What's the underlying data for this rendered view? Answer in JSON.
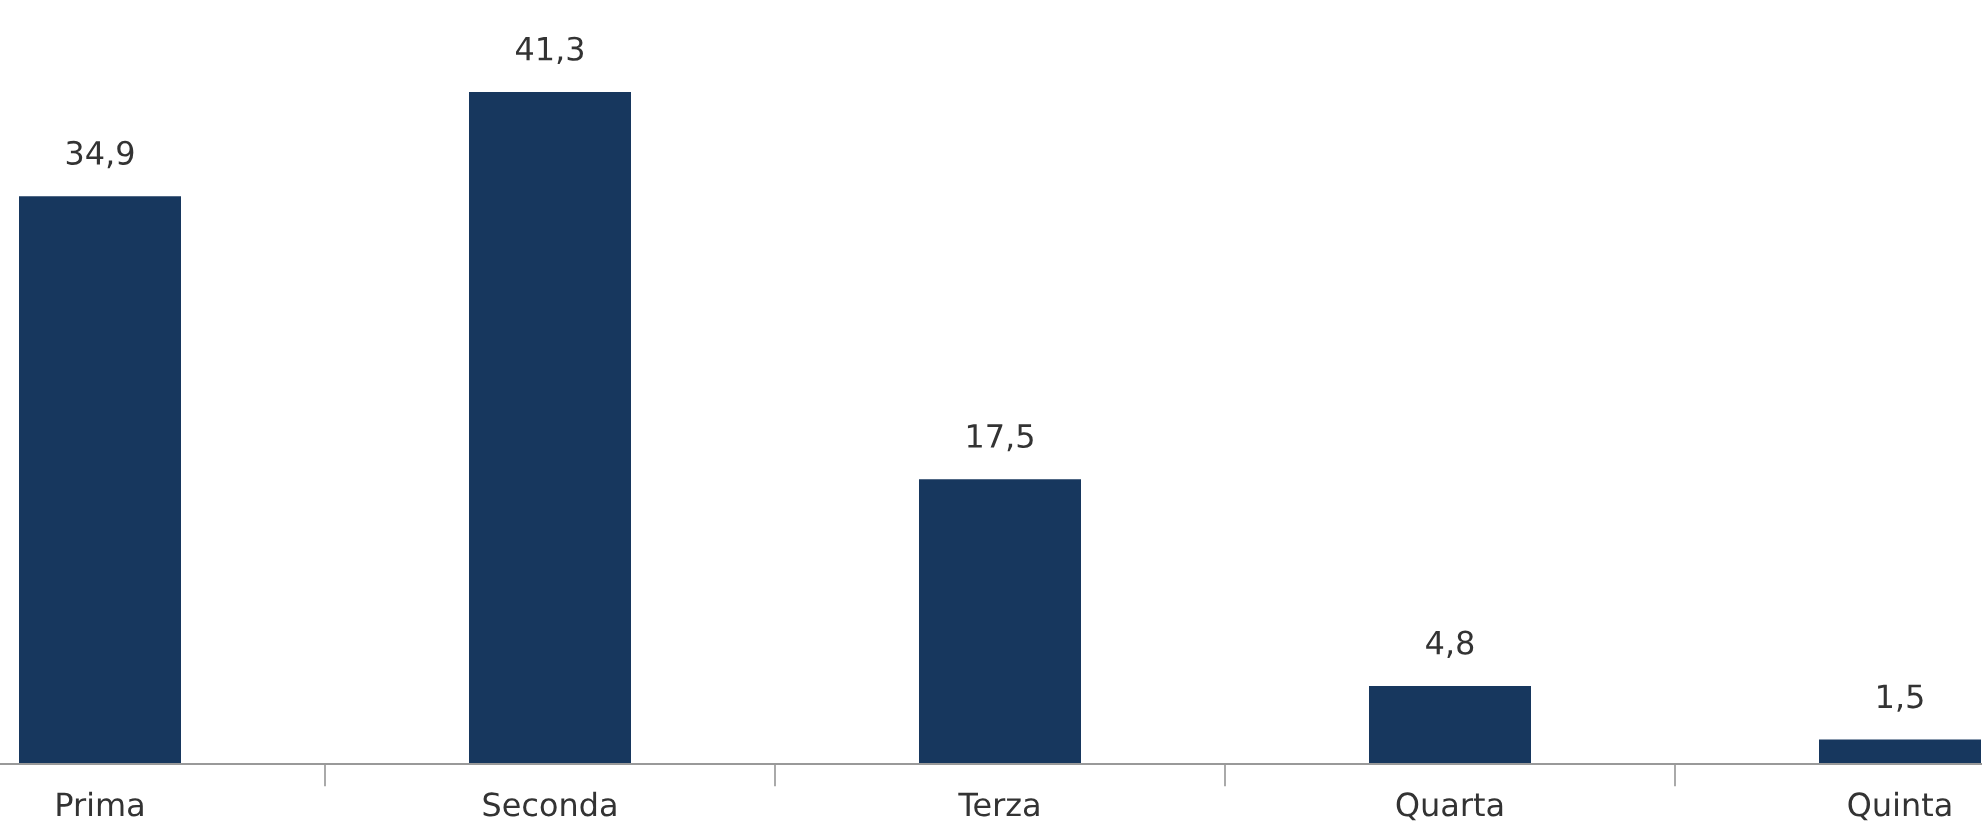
{
  "chart_data": {
    "type": "bar",
    "categories": [
      "Prima",
      "Seconda",
      "Terza",
      "Quarta",
      "Quinta"
    ],
    "values": [
      34.9,
      41.3,
      17.5,
      4.8,
      1.5
    ],
    "value_labels": [
      "34,9",
      "41,3",
      "17,5",
      "4,8",
      "1,5"
    ],
    "color": "#17375e",
    "grid": false,
    "legend": false
  }
}
